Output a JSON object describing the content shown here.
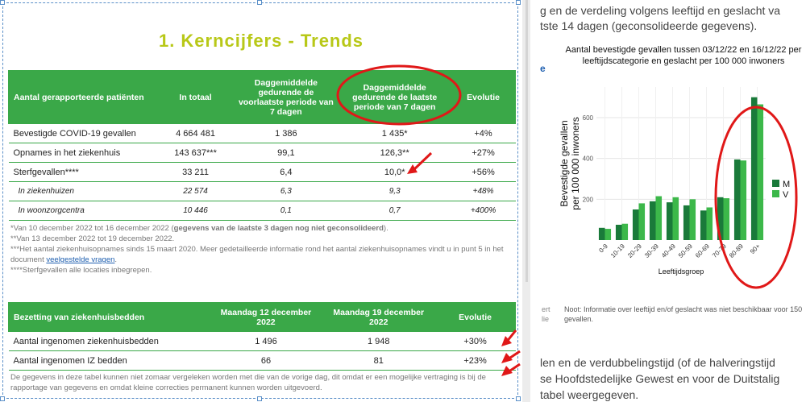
{
  "doc_title": "1. Kerncijfers - Trends",
  "table1": {
    "headers": [
      "Aantal gerapporteerde patiënten",
      "In totaal",
      "Daggemiddelde gedurende de voorlaatste periode van 7 dagen",
      "Daggemiddelde gedurende de laatste periode van 7 dagen",
      "Evolutie"
    ],
    "rows": [
      {
        "label": "Bevestigde COVID-19 gevallen",
        "total": "4 664 481",
        "prev": "1 386",
        "last": "1 435*",
        "evo": "+4%"
      },
      {
        "label": "Opnames in het ziekenhuis",
        "total": "143 637***",
        "prev": "99,1",
        "last": "126,3**",
        "evo": "+27%"
      },
      {
        "label": "Sterfgevallen****",
        "total": "33 211",
        "prev": "6,4",
        "last": "10,0*",
        "evo": "+56%"
      },
      {
        "label": "In ziekenhuizen",
        "total": "22 574",
        "prev": "6,3",
        "last": "9,3",
        "evo": "+48%"
      },
      {
        "label": "In woonzorgcentra",
        "total": "10 446",
        "prev": "0,1",
        "last": "0,7",
        "evo": "+400%"
      }
    ]
  },
  "notes1": {
    "n1_prefix": "*Van 10 december 2022 tot 16 december 2022 (",
    "n1_bold": "gegevens van de laatste 3 dagen nog niet geconsolideerd",
    "n1_suffix": ").",
    "n2": "**Van 13 december 2022 tot 19 december 2022.",
    "n3": "***Het aantal ziekenhuisopnames sinds 15 maart 2020. Meer gedetailleerde informatie rond het aantal ziekenhuisopnames vindt u in punt 5 in het document",
    "n3_link": "veelgestelde vragen",
    "n4": "****Sterfgevallen alle locaties inbegrepen."
  },
  "table2": {
    "headers": [
      "Bezetting van ziekenhuisbedden",
      "Maandag 12 december 2022",
      "Maandag 19 december 2022",
      "Evolutie"
    ],
    "rows": [
      {
        "label": "Aantal ingenomen ziekenhuisbedden",
        "d1": "1 496",
        "d2": "1 948",
        "evo": "+30%"
      },
      {
        "label": "Aantal ingenomen IZ bedden",
        "d1": "66",
        "d2": "81",
        "evo": "+23%"
      }
    ]
  },
  "notes2": {
    "n1": "De gegevens in deze tabel kunnen niet zomaar vergeleken worden met die van de vorige dag, dit omdat er een mogelijke vertraging is bij de rapportage van gegevens en omdat kleine correcties permanent kunnen worden uitgevoerd."
  },
  "right": {
    "line1": "g en de verdeling volgens leeftijd en geslacht va",
    "line2": "tste 14 dagen (geconsolideerde gegevens).",
    "link_char": "e",
    "side_text": "ert\nlie",
    "note": "Noot: Informatie over leeftijd en/of geslacht was niet beschikbaar voor 150 gevallen.",
    "bottom1": "len en de verdubbelingstijd (of de halveringstijd",
    "bottom2": "se Hoofdstedelijke Gewest en voor de Duitstalig",
    "bottom3": "tabel weergegeven."
  },
  "chart_data": {
    "type": "bar",
    "title": "Aantal bevestigde gevallen tussen 03/12/22 en 16/12/22 per leeftijdscategorie en geslacht per 100 000 inwoners",
    "xlabel": "Leeftijdsgroep",
    "ylabel": "Bevestigde gevallen per 100 000 inwoners",
    "categories": [
      "0-9",
      "10-19",
      "20-29",
      "30-39",
      "40-49",
      "50-59",
      "60-69",
      "70-79",
      "80-89",
      "90+"
    ],
    "series": [
      {
        "name": "M",
        "color": "#1a7a3a",
        "values": [
          60,
          75,
          150,
          190,
          185,
          170,
          145,
          210,
          395,
          700
        ]
      },
      {
        "name": "V",
        "color": "#3cb84a",
        "values": [
          55,
          80,
          180,
          215,
          210,
          200,
          160,
          205,
          390,
          665
        ]
      }
    ],
    "ylim": [
      0,
      750
    ],
    "yticks": [
      200,
      400,
      600
    ],
    "legend": "right",
    "grid": true
  },
  "annotation_color": "#e01818"
}
